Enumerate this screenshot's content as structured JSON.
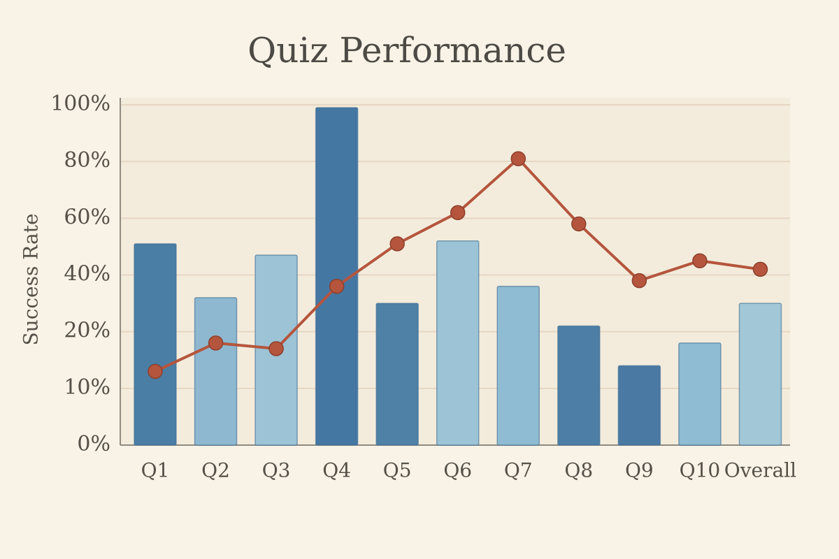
{
  "chart_data": {
    "type": "bar",
    "title": "Quiz Performance",
    "y_label": "Success Rate",
    "categories": [
      "Q1",
      "Q2",
      "Q3",
      "Q4",
      "Q5",
      "Q6",
      "Q7",
      "Q8",
      "Q9",
      "Q10",
      "Overall"
    ],
    "series": [
      {
        "type": "bar",
        "colors": [
          "#4a7ea5",
          "#8db8cf",
          "#9cc3d6",
          "#4577a3",
          "#4f80a6",
          "#9cc4d6",
          "#8fbcd2",
          "#4c7ea6",
          "#4a7aa3",
          "#8fbcd2",
          "#a2c8d8"
        ],
        "values": [
          51,
          32,
          47,
          99,
          30,
          52,
          36,
          22,
          14,
          18,
          30
        ]
      },
      {
        "type": "line",
        "color": "#b5553d",
        "values": [
          13,
          18,
          17,
          36,
          51,
          62,
          81,
          58,
          38,
          45,
          42
        ]
      }
    ],
    "ylim": [
      0,
      100
    ],
    "yticks": [
      {
        "value": 0,
        "label": "0%"
      },
      {
        "value": 10,
        "label": "10%"
      },
      {
        "value": 20,
        "label": "20%"
      },
      {
        "value": 40,
        "label": "40%"
      },
      {
        "value": 60,
        "label": "60%"
      },
      {
        "value": 80,
        "label": "80%"
      },
      {
        "value": 100,
        "label": "100%"
      }
    ],
    "grid": true
  }
}
